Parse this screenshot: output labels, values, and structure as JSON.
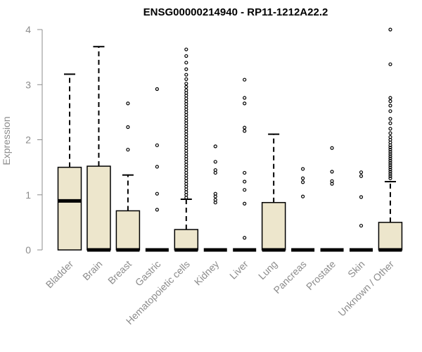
{
  "colors": {
    "box_fill": "#ede6cc",
    "stroke": "#000000",
    "axis_text": "#8c8c8c",
    "axis_line": "#8c8c8c"
  },
  "chart_data": {
    "type": "boxplot",
    "title": "ENSG00000214940 - RP11-1212A22.2",
    "xlabel": "",
    "ylabel": "Expression",
    "ylim": [
      0,
      4
    ],
    "yticks": [
      "0",
      "1",
      "2",
      "3",
      "4"
    ],
    "grid": false,
    "categories": [
      "Bladder",
      "Brain",
      "Breast",
      "Gastric",
      "Hematopoietic cells",
      "Kidney",
      "Liver",
      "Lung",
      "Pancreas",
      "Prostate",
      "Skin",
      "Unknown / Other"
    ],
    "boxes": [
      {
        "q1": 0,
        "median": 0.89,
        "q3": 1.5,
        "whisker_low": 0,
        "whisker_high": 3.19,
        "outliers": []
      },
      {
        "q1": 0,
        "median": 0,
        "q3": 1.52,
        "whisker_low": 0,
        "whisker_high": 3.69,
        "outliers": []
      },
      {
        "q1": 0,
        "median": 0,
        "q3": 0.71,
        "whisker_low": 0,
        "whisker_high": 1.36,
        "outliers": [
          1.82,
          2.23,
          2.66
        ]
      },
      {
        "q1": 0,
        "median": 0,
        "q3": 0,
        "whisker_low": 0,
        "whisker_high": 0,
        "outliers": [
          0.73,
          1.02,
          1.51,
          1.9,
          2.92
        ]
      },
      {
        "q1": 0,
        "median": 0,
        "q3": 0.37,
        "whisker_low": 0,
        "whisker_high": 0.92,
        "outliers": [
          0.95,
          1.0,
          1.05,
          1.1,
          1.15,
          1.2,
          1.25,
          1.3,
          1.35,
          1.4,
          1.45,
          1.5,
          1.55,
          1.6,
          1.65,
          1.7,
          1.75,
          1.8,
          1.85,
          1.9,
          1.95,
          2.0,
          2.05,
          2.1,
          2.15,
          2.2,
          2.25,
          2.3,
          2.35,
          2.4,
          2.45,
          2.5,
          2.55,
          2.6,
          2.65,
          2.7,
          2.75,
          2.8,
          2.85,
          2.9,
          2.96,
          3.02,
          3.1,
          3.18,
          3.28,
          3.4,
          3.52,
          3.64
        ]
      },
      {
        "q1": 0,
        "median": 0,
        "q3": 0,
        "whisker_low": 0,
        "whisker_high": 0,
        "outliers": [
          0.86,
          0.91,
          0.97,
          1.02,
          1.4,
          1.45,
          1.6,
          1.88
        ]
      },
      {
        "q1": 0,
        "median": 0,
        "q3": 0,
        "whisker_low": 0,
        "whisker_high": 0,
        "outliers": [
          0.22,
          0.84,
          1.09,
          1.24,
          1.4,
          2.16,
          2.22,
          2.66,
          2.76,
          3.09
        ]
      },
      {
        "q1": 0,
        "median": 0,
        "q3": 0.86,
        "whisker_low": 0,
        "whisker_high": 2.1,
        "outliers": []
      },
      {
        "q1": 0,
        "median": 0,
        "q3": 0,
        "whisker_low": 0,
        "whisker_high": 0,
        "outliers": [
          0.97,
          1.23,
          1.3,
          1.47
        ]
      },
      {
        "q1": 0,
        "median": 0,
        "q3": 0,
        "whisker_low": 0,
        "whisker_high": 0,
        "outliers": [
          1.2,
          1.25,
          1.42,
          1.85
        ]
      },
      {
        "q1": 0,
        "median": 0,
        "q3": 0,
        "whisker_low": 0,
        "whisker_high": 0,
        "outliers": [
          0.44,
          0.96,
          1.34,
          1.41
        ]
      },
      {
        "q1": 0,
        "median": 0,
        "q3": 0.5,
        "whisker_low": 0,
        "whisker_high": 1.24,
        "outliers": [
          1.3,
          1.34,
          1.38,
          1.42,
          1.46,
          1.5,
          1.54,
          1.58,
          1.62,
          1.66,
          1.7,
          1.74,
          1.78,
          1.82,
          1.86,
          1.9,
          1.95,
          2.0,
          2.05,
          2.12,
          2.2,
          2.3,
          2.38,
          2.52,
          2.62,
          2.7,
          2.76,
          3.37,
          4.0
        ]
      }
    ]
  }
}
